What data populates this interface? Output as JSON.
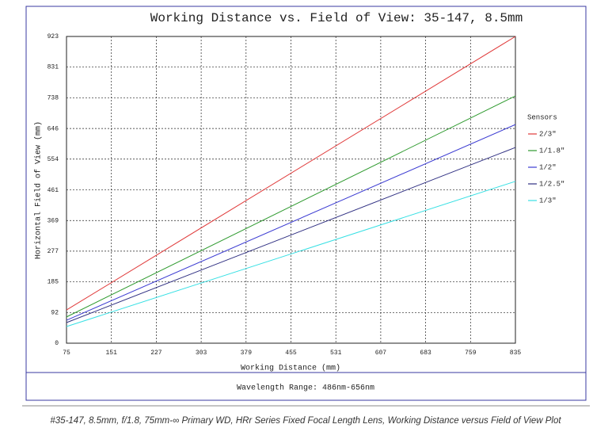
{
  "chart_data": {
    "type": "line",
    "title": "Working Distance vs. Field of View: 35-147, 8.5mm",
    "xlabel": "Working Distance (mm)",
    "ylabel": "Horizontal Field of View (mm)",
    "x": [
      75,
      835
    ],
    "series": [
      {
        "name": "2/3\"",
        "color": "#e03a3a",
        "values": [
          100,
          923
        ]
      },
      {
        "name": "1/1.8\"",
        "color": "#2e9a2e",
        "values": [
          79,
          744
        ]
      },
      {
        "name": "1/2\"",
        "color": "#3c3cd2",
        "values": [
          69,
          658
        ]
      },
      {
        "name": "1/2.5\"",
        "color": "#2f2f82",
        "values": [
          62,
          589
        ]
      },
      {
        "name": "1/3\"",
        "color": "#38e0e4",
        "values": [
          50,
          487
        ]
      }
    ],
    "legend_title": "Sensors",
    "legend": "right",
    "xlim": [
      75,
      835
    ],
    "xticks": [
      75,
      151,
      227,
      303,
      379,
      455,
      531,
      607,
      683,
      759,
      835
    ],
    "ylim": [
      0,
      923
    ],
    "yticks": [
      0,
      92,
      185,
      277,
      369,
      461,
      554,
      646,
      738,
      831,
      923
    ],
    "grid": true
  },
  "footer": "Wavelength Range: 486nm-656nm",
  "caption": "#35-147, 8.5mm, f/1.8, 75mm-∞ Primary WD, HRr Series Fixed Focal Length Lens, Working Distance versus Field of View Plot"
}
